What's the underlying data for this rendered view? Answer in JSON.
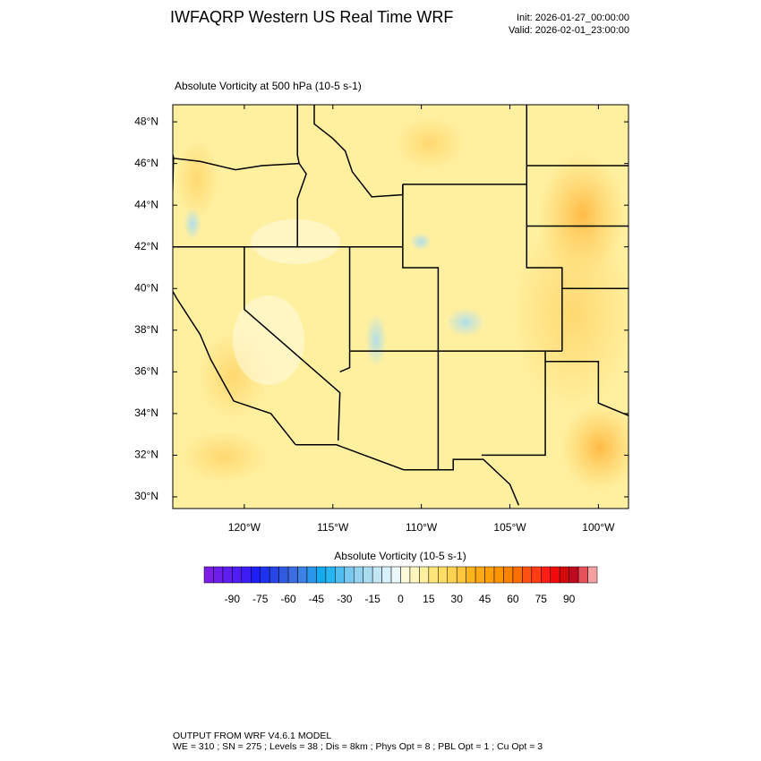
{
  "header": {
    "title": "IWFAQRP Western US Real Time WRF",
    "init": "Init: 2026-01-27_00:00:00",
    "valid": "Valid: 2026-02-01_23:00:00"
  },
  "map": {
    "subtitle": "Absolute Vorticity at 500 hPa   (10-5 s-1)",
    "lon_range": [
      -124.04,
      -98.3
    ],
    "lat_range": [
      29.44,
      48.82
    ],
    "lat_ticks": [
      {
        "value": 48,
        "label": "48°N"
      },
      {
        "value": 46,
        "label": "46°N"
      },
      {
        "value": 44,
        "label": "44°N"
      },
      {
        "value": 42,
        "label": "42°N"
      },
      {
        "value": 40,
        "label": "40°N"
      },
      {
        "value": 38,
        "label": "38°N"
      },
      {
        "value": 36,
        "label": "36°N"
      },
      {
        "value": 34,
        "label": "34°N"
      },
      {
        "value": 32,
        "label": "32°N"
      },
      {
        "value": 30,
        "label": "30°N"
      }
    ],
    "lon_ticks": [
      {
        "value": -120,
        "label": "120°W"
      },
      {
        "value": -115,
        "label": "115°W"
      },
      {
        "value": -110,
        "label": "110°W"
      },
      {
        "value": -105,
        "label": "105°W"
      },
      {
        "value": -100,
        "label": "100°W"
      }
    ]
  },
  "colorbar": {
    "label": "Absolute Vorticity  (10-5 s-1)",
    "range": [
      -105,
      105
    ],
    "ticks": [
      -90,
      -75,
      -60,
      -45,
      -30,
      -15,
      0,
      15,
      30,
      45,
      60,
      75,
      90
    ],
    "colors": [
      "#7d1ee6",
      "#6e1eeb",
      "#5f1ef0",
      "#501ef5",
      "#3c1ef5",
      "#1e1efa",
      "#1e32f0",
      "#2846e6",
      "#325ae1",
      "#3c6ee1",
      "#3c82e6",
      "#2896eb",
      "#14aaf0",
      "#28b4f0",
      "#50bef0",
      "#78c8f0",
      "#96d2f0",
      "#aadcf0",
      "#c3e6f5",
      "#d7f0fa",
      "#ebf8fa",
      "#fffadc",
      "#fff5be",
      "#fff0a0",
      "#ffe678",
      "#ffdc64",
      "#ffd250",
      "#ffc83c",
      "#ffb41e",
      "#ffaa14",
      "#ffa00a",
      "#ff9600",
      "#ff8200",
      "#ff6e00",
      "#ff5014",
      "#ff3c14",
      "#ff1e14",
      "#f00a0a",
      "#d20a0a",
      "#be0a1e",
      "#e6505a",
      "#f5a0a0"
    ]
  },
  "footer": {
    "line1": "OUTPUT FROM WRF V4.6.1 MODEL",
    "line2": "WE = 310 ; SN = 275 ; Levels = 38 ; Dis = 8km ; Phys Opt = 8 ; PBL Opt = 1 ; Cu Opt = 3"
  }
}
